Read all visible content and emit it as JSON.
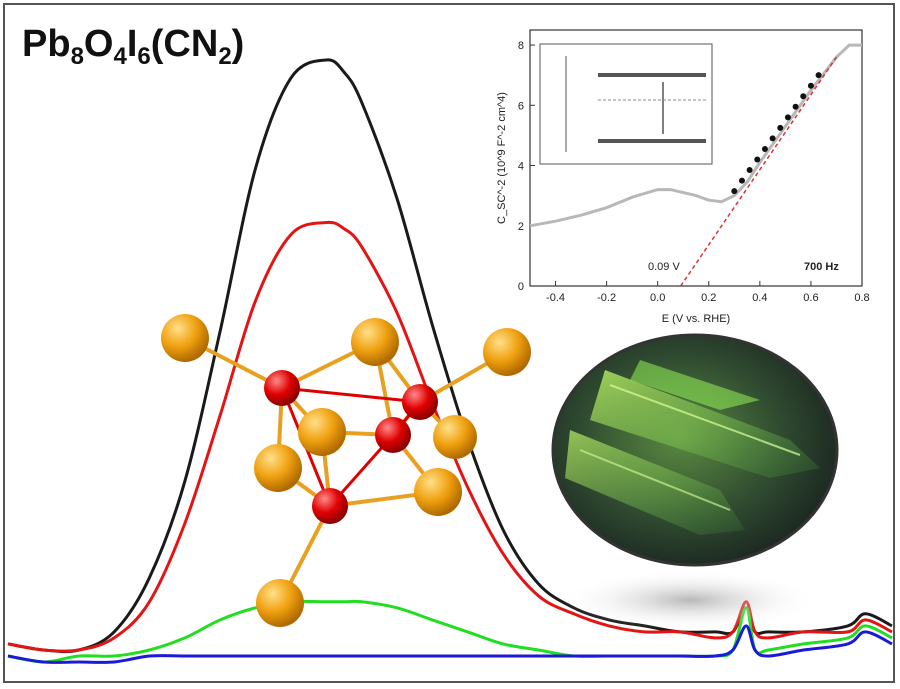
{
  "title": {
    "symbols": [
      "Pb",
      "O",
      "I",
      "(CN",
      ")"
    ],
    "subscripts": [
      "8",
      "4",
      "6",
      "2"
    ]
  },
  "colors": {
    "black": "#1a1a1a",
    "red": "#e41414",
    "green": "#22dd22",
    "blue": "#1a1ad8",
    "lead_atom": "#f0a010",
    "oxygen_atom": "#e00000",
    "bond": "#e8a020"
  },
  "chart_data": [
    {
      "type": "line",
      "role": "main-spectra",
      "x": [
        0,
        0.04,
        0.08,
        0.12,
        0.16,
        0.2,
        0.24,
        0.28,
        0.32,
        0.36,
        0.38,
        0.4,
        0.44,
        0.48,
        0.52,
        0.56,
        0.6,
        0.64,
        0.68,
        0.72,
        0.76,
        0.8,
        0.82,
        0.835,
        0.845,
        0.86,
        0.9,
        0.95,
        0.97,
        1.0
      ],
      "series": [
        {
          "color_key": "black",
          "values": [
            0.03,
            0.02,
            0.02,
            0.05,
            0.14,
            0.3,
            0.55,
            0.82,
            0.97,
            1.0,
            0.98,
            0.93,
            0.77,
            0.56,
            0.37,
            0.22,
            0.13,
            0.09,
            0.07,
            0.06,
            0.05,
            0.05,
            0.05,
            0.09,
            0.05,
            0.05,
            0.05,
            0.06,
            0.08,
            0.06
          ]
        },
        {
          "color_key": "red",
          "values": [
            0.03,
            0.02,
            0.02,
            0.04,
            0.1,
            0.23,
            0.41,
            0.6,
            0.71,
            0.73,
            0.72,
            0.69,
            0.58,
            0.43,
            0.29,
            0.18,
            0.11,
            0.08,
            0.06,
            0.05,
            0.05,
            0.04,
            0.05,
            0.1,
            0.05,
            0.04,
            0.05,
            0.05,
            0.07,
            0.05
          ]
        },
        {
          "color_key": "green",
          "values": [
            0.01,
            0.0,
            0.01,
            0.01,
            0.02,
            0.04,
            0.07,
            0.09,
            0.1,
            0.1,
            0.1,
            0.1,
            0.09,
            0.07,
            0.05,
            0.03,
            0.02,
            0.01,
            0.01,
            0.01,
            0.01,
            0.01,
            0.02,
            0.09,
            0.02,
            0.02,
            0.03,
            0.04,
            0.06,
            0.04
          ]
        },
        {
          "color_key": "blue",
          "values": [
            0.01,
            0.0,
            0.0,
            0.0,
            0.01,
            0.01,
            0.01,
            0.01,
            0.01,
            0.01,
            0.01,
            0.01,
            0.01,
            0.01,
            0.01,
            0.01,
            0.01,
            0.01,
            0.01,
            0.01,
            0.01,
            0.01,
            0.02,
            0.06,
            0.02,
            0.01,
            0.02,
            0.03,
            0.05,
            0.03
          ]
        }
      ]
    },
    {
      "type": "scatter",
      "role": "inset-mott-schottky",
      "xlabel": "E (V vs. RHE)",
      "ylabel": "C_SC^-2 (10^9 F^-2 cm^4)",
      "xlim": [
        -0.5,
        0.8
      ],
      "ylim": [
        0,
        8.5
      ],
      "xticks": [
        -0.4,
        -0.2,
        0.0,
        0.2,
        0.4,
        0.6,
        0.8
      ],
      "yticks": [
        0,
        2,
        4,
        6,
        8
      ],
      "annotations": [
        "0.09 V",
        "700 Hz"
      ],
      "grey_curve": {
        "x": [
          -0.5,
          -0.4,
          -0.3,
          -0.2,
          -0.1,
          0.0,
          0.05,
          0.1,
          0.15,
          0.2,
          0.25,
          0.3,
          0.35,
          0.4,
          0.5,
          0.6,
          0.7,
          0.75,
          0.8
        ],
        "y": [
          2.0,
          2.15,
          2.35,
          2.6,
          2.95,
          3.2,
          3.2,
          3.1,
          3.0,
          2.85,
          2.8,
          3.0,
          3.45,
          4.1,
          5.3,
          6.5,
          7.6,
          8.0,
          8.0
        ]
      },
      "points": {
        "x": [
          0.3,
          0.33,
          0.36,
          0.39,
          0.42,
          0.45,
          0.48,
          0.51,
          0.54,
          0.57,
          0.6,
          0.63
        ],
        "y": [
          3.15,
          3.5,
          3.85,
          4.2,
          4.55,
          4.9,
          5.25,
          5.6,
          5.95,
          6.3,
          6.65,
          7.0
        ]
      },
      "fit_line": {
        "x": [
          0.09,
          0.7
        ],
        "y": [
          0,
          7.6
        ]
      }
    }
  ]
}
